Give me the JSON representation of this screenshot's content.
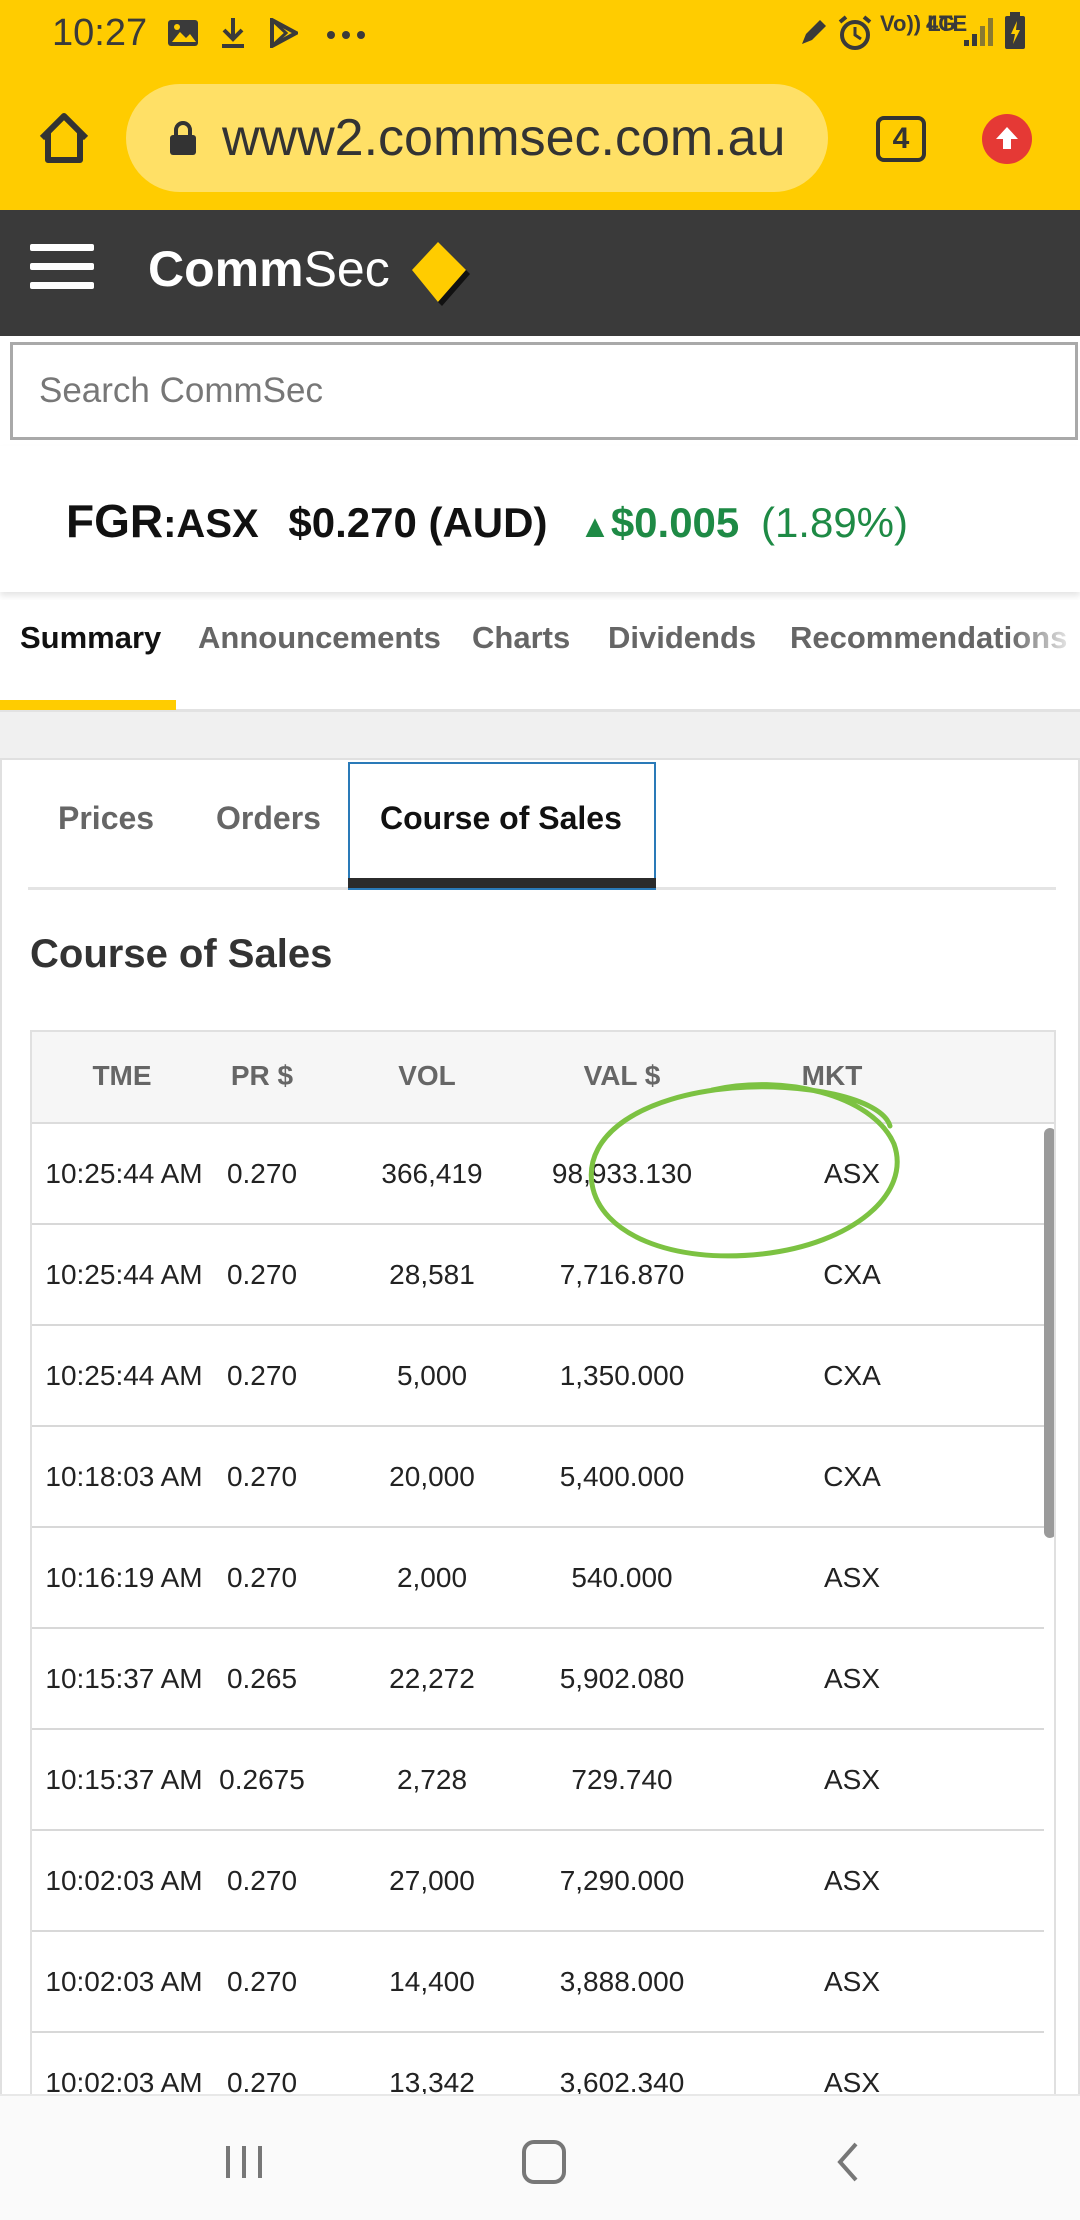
{
  "status_bar": {
    "time": "10:27",
    "left_icons": [
      "image-icon",
      "download-icon",
      "play-store-icon",
      "more-icon"
    ],
    "right_icons": [
      "pencil-icon",
      "alarm-icon",
      "volte-icon",
      "4g-icon",
      "signal-icon",
      "battery-icon"
    ],
    "volte_label": "Vo)) LTE",
    "network_label": "4G"
  },
  "browser": {
    "url": "www2.commsec.com.au",
    "tab_count": "4"
  },
  "header": {
    "logo_bold": "Comm",
    "logo_light": "Sec",
    "brand_color": "#ffcc00"
  },
  "search": {
    "placeholder": "Search CommSec"
  },
  "quote": {
    "code": "FGR",
    "exchange": ":ASX",
    "price": "$0.270 (AUD)",
    "change": "$0.005",
    "change_pct": "(1.89%)",
    "direction": "up",
    "positive_color": "#1e8a45"
  },
  "top_tabs": [
    {
      "label": "Summary",
      "active": true
    },
    {
      "label": "Announcements",
      "active": false
    },
    {
      "label": "Charts",
      "active": false
    },
    {
      "label": "Dividends",
      "active": false
    },
    {
      "label": "Recommendations",
      "active": false
    }
  ],
  "sub_tabs": [
    {
      "label": "Prices",
      "active": false
    },
    {
      "label": "Orders",
      "active": false
    },
    {
      "label": "Course of Sales",
      "active": true
    }
  ],
  "section_title": "Course of Sales",
  "table": {
    "columns": [
      "TME",
      "PR $",
      "VOL",
      "VAL $",
      "MKT"
    ],
    "rows": [
      [
        "10:25:44 AM",
        "0.270",
        "366,419",
        "98,933.130",
        "ASX"
      ],
      [
        "10:25:44 AM",
        "0.270",
        "28,581",
        "7,716.870",
        "CXA"
      ],
      [
        "10:25:44 AM",
        "0.270",
        "5,000",
        "1,350.000",
        "CXA"
      ],
      [
        "10:18:03 AM",
        "0.270",
        "20,000",
        "5,400.000",
        "CXA"
      ],
      [
        "10:16:19 AM",
        "0.270",
        "2,000",
        "540.000",
        "ASX"
      ],
      [
        "10:15:37 AM",
        "0.265",
        "22,272",
        "5,902.080",
        "ASX"
      ],
      [
        "10:15:37 AM",
        "0.2675",
        "2,728",
        "729.740",
        "ASX"
      ],
      [
        "10:02:03 AM",
        "0.270",
        "27,000",
        "7,290.000",
        "ASX"
      ],
      [
        "10:02:03 AM",
        "0.270",
        "14,400",
        "3,888.000",
        "ASX"
      ],
      [
        "10:02:03 AM",
        "0.270",
        "13,342",
        "3,602.340",
        "ASX"
      ]
    ]
  },
  "annotation": {
    "type": "hand-drawn-circle",
    "color": "#7cc242"
  },
  "nav_bar": {
    "buttons": [
      "recents-icon",
      "home-icon",
      "back-icon"
    ]
  }
}
